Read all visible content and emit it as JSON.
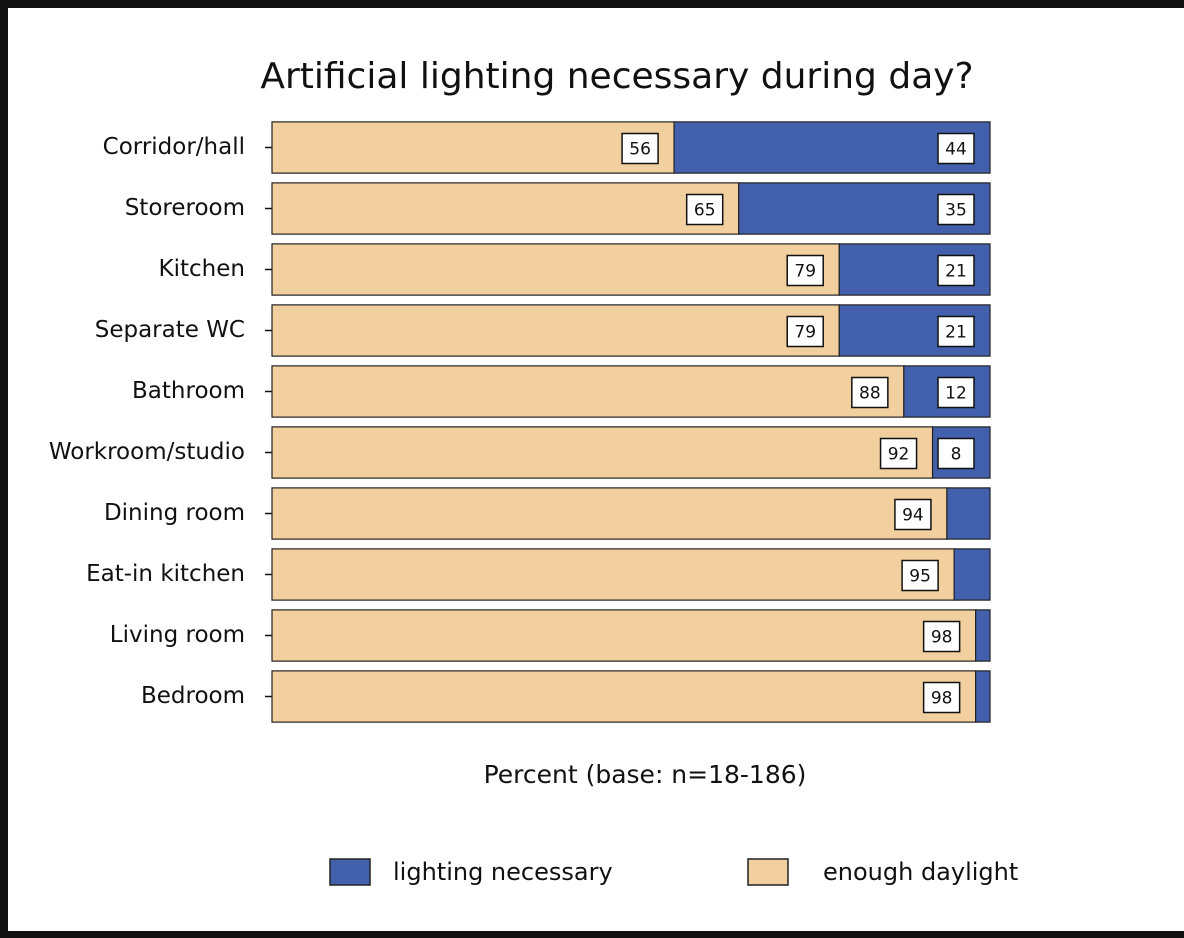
{
  "chart_data": {
    "type": "bar",
    "orientation": "horizontal",
    "stacked": true,
    "title": "Artificial lighting necessary during day?",
    "x_label": "Percent (base: n=18-186)",
    "categories": [
      "Corridor/hall",
      "Storeroom",
      "Kitchen",
      "Separate WC",
      "Bathroom",
      "Workroom/studio",
      "Dining room",
      "Eat-in kitchen",
      "Living room",
      "Bedroom"
    ],
    "xlim": [
      0,
      100
    ],
    "series": [
      {
        "name": "enough daylight",
        "color": "#f2cf9f",
        "values": [
          56,
          65,
          79,
          79,
          88,
          92,
          94,
          95,
          98,
          98
        ]
      },
      {
        "name": "lighting necessary",
        "color": "#4360ad",
        "values": [
          44,
          35,
          21,
          21,
          12,
          8,
          6,
          5,
          2,
          2
        ],
        "value_labels": [
          44,
          35,
          21,
          21,
          12,
          8,
          null,
          null,
          null,
          null
        ]
      }
    ]
  }
}
